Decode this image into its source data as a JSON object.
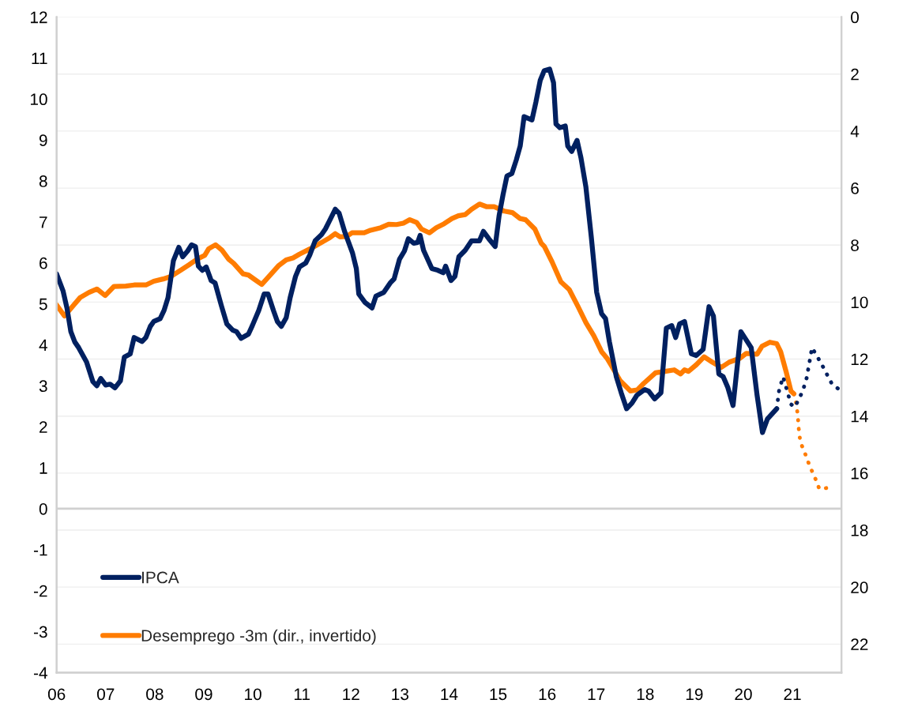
{
  "chart_data": {
    "type": "line",
    "xlim": [
      2006,
      2022
    ],
    "xticks": [
      {
        "value": 2006,
        "label": "06"
      },
      {
        "value": 2007,
        "label": "07"
      },
      {
        "value": 2008,
        "label": "08"
      },
      {
        "value": 2009,
        "label": "09"
      },
      {
        "value": 2010,
        "label": "10"
      },
      {
        "value": 2011,
        "label": "11"
      },
      {
        "value": 2012,
        "label": "12"
      },
      {
        "value": 2013,
        "label": "13"
      },
      {
        "value": 2014,
        "label": "14"
      },
      {
        "value": 2015,
        "label": "15"
      },
      {
        "value": 2016,
        "label": "16"
      },
      {
        "value": 2017,
        "label": "17"
      },
      {
        "value": 2018,
        "label": "18"
      },
      {
        "value": 2019,
        "label": "19"
      },
      {
        "value": 2020,
        "label": "20"
      },
      {
        "value": 2021,
        "label": "21"
      }
    ],
    "ylim": [
      -4,
      12
    ],
    "yticks": [
      -4,
      -3,
      -2,
      -1,
      0,
      1,
      2,
      3,
      4,
      5,
      6,
      7,
      8,
      9,
      10,
      11,
      12
    ],
    "y2lim": [
      23,
      0
    ],
    "y2ticks": [
      0,
      2,
      4,
      6,
      8,
      10,
      12,
      14,
      16,
      18,
      20,
      22
    ],
    "grid": "y2",
    "legend": "bottom left",
    "ref_lines": [
      {
        "axis": "y",
        "value": 0,
        "color": "#d0d0d0"
      }
    ],
    "series": [
      {
        "name": "IPCA",
        "color": "#002060",
        "line_style": "solid",
        "x": [
          2006.0,
          2006.13,
          2006.21,
          2006.29,
          2006.37,
          2006.45,
          2006.61,
          2006.74,
          2006.82,
          2006.9,
          2007.0,
          2007.09,
          2007.19,
          2007.3,
          2007.38,
          2007.5,
          2007.58,
          2007.74,
          2007.82,
          2007.91,
          2007.98,
          2008.11,
          2008.19,
          2008.27,
          2008.38,
          2008.49,
          2008.57,
          2008.67,
          2008.75,
          2008.83,
          2008.89,
          2008.97,
          2009.05,
          2009.15,
          2009.23,
          2009.36,
          2009.47,
          2009.59,
          2009.67,
          2009.76,
          2009.91,
          2009.99,
          2010.12,
          2010.23,
          2010.31,
          2010.42,
          2010.5,
          2010.58,
          2010.68,
          2010.76,
          2010.87,
          2010.95,
          2011.08,
          2011.16,
          2011.27,
          2011.4,
          2011.48,
          2011.56,
          2011.68,
          2011.76,
          2011.87,
          2012.03,
          2012.11,
          2012.16,
          2012.29,
          2012.43,
          2012.51,
          2012.67,
          2012.8,
          2012.88,
          2012.99,
          2013.09,
          2013.17,
          2013.28,
          2013.36,
          2013.41,
          2013.48,
          2013.65,
          2013.77,
          2013.88,
          2013.93,
          2014.04,
          2014.12,
          2014.2,
          2014.33,
          2014.46,
          2014.62,
          2014.7,
          2014.81,
          2014.94,
          2015.02,
          2015.1,
          2015.18,
          2015.28,
          2015.37,
          2015.45,
          2015.53,
          2015.69,
          2015.77,
          2015.86,
          2015.94,
          2016.05,
          2016.13,
          2016.18,
          2016.26,
          2016.37,
          2016.42,
          2016.5,
          2016.61,
          2016.69,
          2016.79,
          2016.9,
          2017.01,
          2017.11,
          2017.19,
          2017.27,
          2017.41,
          2017.51,
          2017.62,
          2017.73,
          2017.83,
          2017.99,
          2018.07,
          2018.19,
          2018.32,
          2018.43,
          2018.54,
          2018.62,
          2018.7,
          2018.8,
          2018.94,
          2019.04,
          2019.18,
          2019.3,
          2019.39,
          2019.5,
          2019.59,
          2019.68,
          2019.79,
          2019.95,
          2020.08,
          2020.16,
          2020.28,
          2020.39,
          2020.49,
          2020.68
        ],
        "values": [
          5.73,
          5.32,
          4.9,
          4.32,
          4.07,
          3.93,
          3.58,
          3.1,
          3.0,
          3.18,
          3.02,
          3.04,
          2.95,
          3.12,
          3.7,
          3.78,
          4.18,
          4.08,
          4.18,
          4.45,
          4.57,
          4.64,
          4.84,
          5.15,
          6.05,
          6.38,
          6.15,
          6.29,
          6.44,
          6.4,
          5.92,
          5.82,
          5.9,
          5.57,
          5.51,
          4.95,
          4.51,
          4.36,
          4.32,
          4.16,
          4.26,
          4.47,
          4.84,
          5.24,
          5.24,
          4.84,
          4.57,
          4.45,
          4.66,
          5.15,
          5.67,
          5.9,
          6.0,
          6.19,
          6.54,
          6.69,
          6.83,
          7.02,
          7.31,
          7.21,
          6.77,
          6.25,
          5.86,
          5.24,
          5.03,
          4.9,
          5.19,
          5.28,
          5.51,
          5.61,
          6.09,
          6.29,
          6.59,
          6.48,
          6.5,
          6.67,
          6.31,
          5.86,
          5.82,
          5.76,
          5.92,
          5.57,
          5.67,
          6.15,
          6.31,
          6.54,
          6.54,
          6.77,
          6.59,
          6.4,
          7.15,
          7.66,
          8.12,
          8.18,
          8.51,
          8.85,
          9.57,
          9.49,
          9.92,
          10.46,
          10.69,
          10.73,
          10.4,
          9.39,
          9.3,
          9.34,
          8.85,
          8.72,
          8.99,
          8.56,
          7.85,
          6.63,
          5.28,
          4.76,
          4.64,
          4.07,
          3.22,
          2.83,
          2.44,
          2.58,
          2.77,
          2.91,
          2.87,
          2.68,
          2.83,
          4.41,
          4.47,
          4.18,
          4.51,
          4.57,
          3.78,
          3.74,
          3.89,
          4.93,
          4.7,
          3.29,
          3.22,
          2.97,
          2.52,
          4.32,
          4.08,
          3.93,
          2.77,
          1.86,
          2.19,
          2.44
        ]
      },
      {
        "color": "#002060",
        "line_style": "dotted",
        "x": [
          2020.68,
          2020.73,
          2020.81,
          2020.97,
          2021.05,
          2021.21,
          2021.29,
          2021.4,
          2021.59,
          2021.8,
          2021.96
        ],
        "values": [
          2.44,
          2.9,
          3.22,
          2.55,
          2.48,
          2.87,
          3.19,
          3.93,
          3.54,
          3.06,
          2.9
        ]
      },
      {
        "name": "Desemprego -3m (dir., invertido)",
        "color": "#ff7c00",
        "axis": "y2",
        "line_style": "solid",
        "x": [
          2006.0,
          2006.16,
          2006.34,
          2006.48,
          2006.66,
          2006.82,
          2006.99,
          2007.17,
          2007.41,
          2007.58,
          2007.82,
          2007.98,
          2008.17,
          2008.33,
          2008.54,
          2008.7,
          2008.86,
          2009.02,
          2009.1,
          2009.24,
          2009.37,
          2009.51,
          2009.61,
          2009.8,
          2009.91,
          2010.04,
          2010.18,
          2010.34,
          2010.52,
          2010.68,
          2010.82,
          2010.95,
          2011.17,
          2011.43,
          2011.57,
          2011.68,
          2011.78,
          2011.92,
          2012.02,
          2012.27,
          2012.4,
          2012.61,
          2012.77,
          2012.93,
          2013.07,
          2013.2,
          2013.34,
          2013.44,
          2013.6,
          2013.74,
          2013.9,
          2014.06,
          2014.19,
          2014.33,
          2014.46,
          2014.62,
          2014.76,
          2014.92,
          2015.13,
          2015.29,
          2015.45,
          2015.56,
          2015.75,
          2015.88,
          2015.94,
          2016.1,
          2016.28,
          2016.45,
          2016.63,
          2016.79,
          2016.95,
          2017.11,
          2017.22,
          2017.33,
          2017.49,
          2017.7,
          2017.84,
          2017.97,
          2018.21,
          2018.4,
          2018.59,
          2018.72,
          2018.8,
          2018.88,
          2019.04,
          2019.2,
          2019.37,
          2019.55,
          2019.71,
          2019.93,
          2020.06,
          2020.28,
          2020.38,
          2020.54,
          2020.68,
          2020.76,
          2020.87,
          2020.97,
          2021.03
        ],
        "values": [
          10.1,
          10.49,
          10.12,
          9.84,
          9.66,
          9.54,
          9.77,
          9.45,
          9.44,
          9.4,
          9.4,
          9.27,
          9.19,
          9.1,
          8.87,
          8.69,
          8.5,
          8.36,
          8.13,
          7.99,
          8.18,
          8.5,
          8.64,
          9.01,
          9.05,
          9.21,
          9.38,
          9.08,
          8.73,
          8.52,
          8.45,
          8.32,
          8.13,
          7.88,
          7.74,
          7.6,
          7.71,
          7.69,
          7.57,
          7.57,
          7.48,
          7.39,
          7.27,
          7.28,
          7.23,
          7.11,
          7.21,
          7.44,
          7.57,
          7.39,
          7.25,
          7.07,
          6.97,
          6.93,
          6.74,
          6.56,
          6.65,
          6.65,
          6.81,
          6.86,
          7.07,
          7.11,
          7.44,
          7.94,
          8.04,
          8.59,
          9.29,
          9.56,
          10.16,
          10.72,
          11.18,
          11.74,
          11.97,
          12.29,
          12.76,
          13.12,
          13.08,
          12.85,
          12.48,
          12.43,
          12.38,
          12.52,
          12.38,
          12.43,
          12.2,
          11.92,
          12.11,
          12.29,
          12.11,
          11.97,
          11.8,
          11.83,
          11.55,
          11.41,
          11.46,
          11.74,
          12.43,
          13.12,
          13.22
        ]
      },
      {
        "color": "#ff7c00",
        "axis": "y2",
        "line_style": "dotted",
        "x": [
          2021.03,
          2021.08,
          2021.11,
          2021.13,
          2021.16,
          2021.26,
          2021.35,
          2021.46,
          2021.55,
          2021.79
        ],
        "values": [
          13.22,
          13.56,
          14.0,
          14.45,
          14.9,
          15.32,
          15.74,
          16.16,
          16.56,
          16.5
        ]
      }
    ]
  }
}
